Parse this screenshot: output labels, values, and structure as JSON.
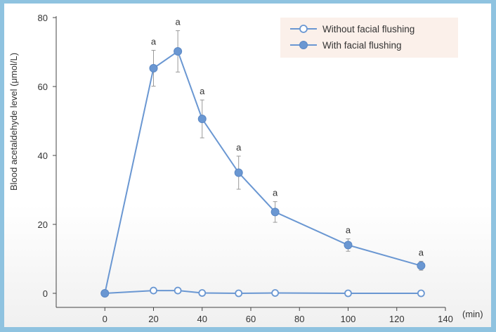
{
  "chart_data": {
    "type": "line",
    "xlabel": "(min)",
    "ylabel": "Blood acetaldehyde level (μmol/L)",
    "xlim": [
      -20,
      140
    ],
    "ylim": [
      0,
      80
    ],
    "xticks": [
      0,
      20,
      40,
      60,
      80,
      100,
      120,
      140
    ],
    "yticks": [
      0,
      20,
      40,
      60,
      80
    ],
    "grid": false,
    "legend_position": "top-right",
    "series": [
      {
        "name": "Without facial flushing",
        "marker": "open-circle",
        "color": "#6a97d2",
        "x": [
          0,
          20,
          30,
          40,
          55,
          70,
          100,
          130
        ],
        "y": [
          0,
          0.8,
          0.8,
          0.1,
          0,
          0.1,
          0,
          0
        ]
      },
      {
        "name": "With facial flushing",
        "marker": "filled-circle",
        "color": "#6a97d2",
        "x": [
          0,
          20,
          30,
          40,
          55,
          70,
          100,
          130
        ],
        "y": [
          0,
          65.3,
          70.2,
          50.6,
          35.0,
          23.6,
          14.0,
          8.0
        ],
        "error": [
          0,
          5.2,
          6.0,
          5.5,
          4.8,
          3.0,
          1.8,
          1.3
        ],
        "significance": [
          "",
          "a",
          "a",
          "a",
          "a",
          "a",
          "a",
          "a"
        ]
      }
    ]
  }
}
